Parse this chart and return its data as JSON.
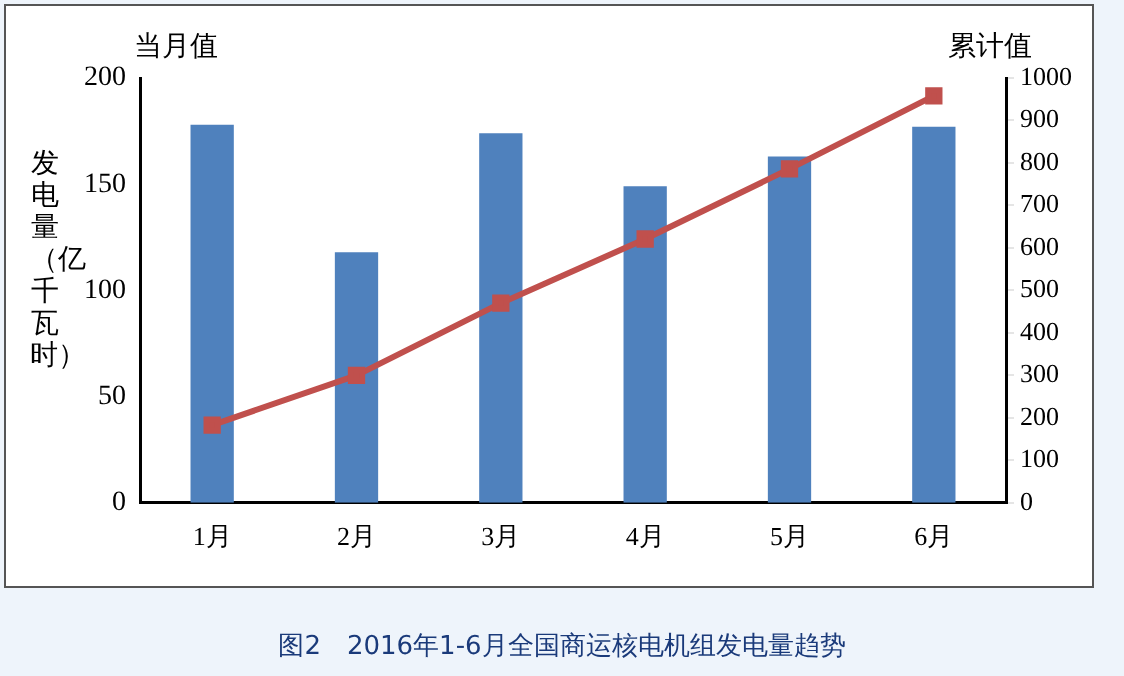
{
  "chart_data": {
    "type": "bar",
    "ylabel": "发电量（亿千瓦时）",
    "annotations": [
      "图2　2016年1-6月全国商运核电机组发电量趋势"
    ],
    "categories": [
      "1月",
      "2月",
      "3月",
      "4月",
      "5月",
      "6月"
    ],
    "series": [
      {
        "name": "当月值",
        "color": "#4f81bd",
        "values": [
          178,
          118,
          174,
          149,
          163,
          177
        ]
      },
      {
        "name": "累计值",
        "type": "line",
        "axis": "y2",
        "color": "#c0504d",
        "marker": "square",
        "values": [
          183,
          300,
          470,
          621,
          786,
          958
        ]
      }
    ],
    "ylim": [
      0,
      200
    ],
    "yticks": [
      0,
      50,
      100,
      150,
      200
    ],
    "y2lim": [
      0,
      1000
    ],
    "y2ticks": [
      0,
      100,
      200,
      300,
      400,
      500,
      600,
      700,
      800,
      900,
      1000
    ],
    "grid": false,
    "legend": false
  }
}
